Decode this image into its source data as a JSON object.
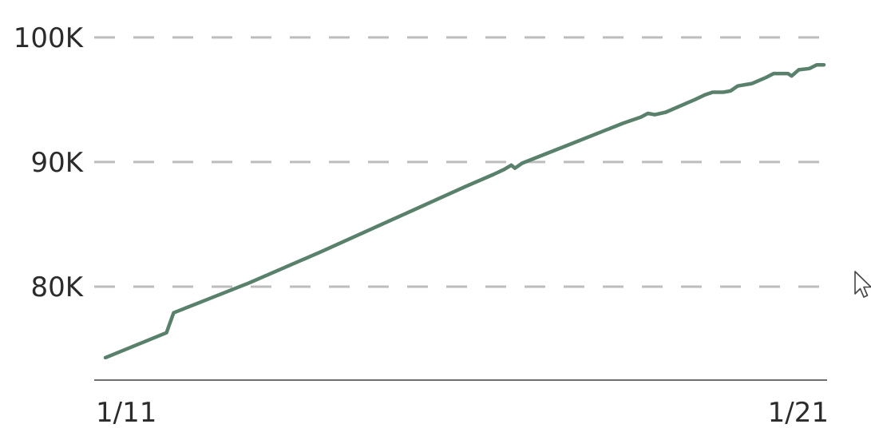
{
  "chart_data": {
    "type": "line",
    "title": "",
    "xlabel": "",
    "ylabel": "",
    "x_tick_labels": [
      "1/11",
      "1/21"
    ],
    "y_ticks": [
      {
        "value": 80000,
        "label": "80K"
      },
      {
        "value": 90000,
        "label": "90K"
      },
      {
        "value": 100000,
        "label": "100K"
      }
    ],
    "xlim": [
      0,
      10
    ],
    "ylim": [
      72500,
      103000
    ],
    "grid": true,
    "legend": "none",
    "series": [
      {
        "color": "#58806b",
        "points": [
          [
            0.0,
            74300
          ],
          [
            0.85,
            76300
          ],
          [
            0.95,
            77900
          ],
          [
            2.0,
            80300
          ],
          [
            3.0,
            82800
          ],
          [
            4.0,
            85400
          ],
          [
            5.0,
            88000
          ],
          [
            5.4,
            89000
          ],
          [
            5.55,
            89400
          ],
          [
            5.65,
            89750
          ],
          [
            5.7,
            89500
          ],
          [
            5.8,
            89900
          ],
          [
            6.5,
            91500
          ],
          [
            7.2,
            93100
          ],
          [
            7.3,
            93300
          ],
          [
            7.45,
            93600
          ],
          [
            7.55,
            93900
          ],
          [
            7.65,
            93800
          ],
          [
            7.8,
            94000
          ],
          [
            8.0,
            94500
          ],
          [
            8.2,
            95000
          ],
          [
            8.35,
            95400
          ],
          [
            8.45,
            95600
          ],
          [
            8.6,
            95600
          ],
          [
            8.7,
            95700
          ],
          [
            8.8,
            96100
          ],
          [
            8.9,
            96200
          ],
          [
            9.0,
            96300
          ],
          [
            9.2,
            96800
          ],
          [
            9.3,
            97100
          ],
          [
            9.5,
            97100
          ],
          [
            9.55,
            96900
          ],
          [
            9.65,
            97400
          ],
          [
            9.8,
            97500
          ],
          [
            9.9,
            97800
          ],
          [
            10.0,
            97800
          ]
        ]
      }
    ]
  },
  "ui": {
    "cursor_icon": "mouse-pointer-icon"
  }
}
